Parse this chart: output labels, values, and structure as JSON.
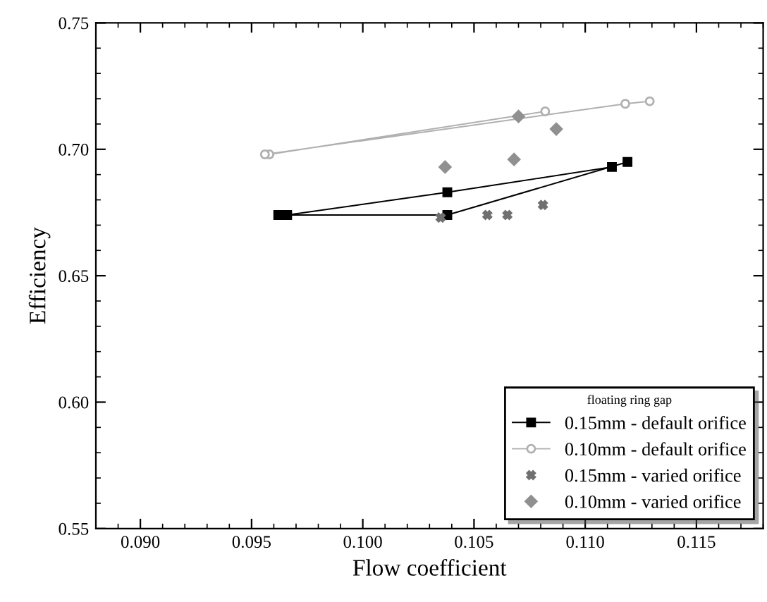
{
  "chart_data": {
    "type": "line",
    "xlabel": "Flow coefficient",
    "ylabel": "Efficiency",
    "legend_title": "floating ring gap",
    "xlim": [
      0.088,
      0.118
    ],
    "xticks": [
      {
        "value": 0.09,
        "label": "0.090"
      },
      {
        "value": 0.095,
        "label": "0.095"
      },
      {
        "value": 0.1,
        "label": "0.100"
      },
      {
        "value": 0.105,
        "label": "0.105"
      },
      {
        "value": 0.11,
        "label": "0.110"
      },
      {
        "value": 0.115,
        "label": "0.115"
      }
    ],
    "ylim": [
      0.55,
      0.75
    ],
    "yticks": [
      0.55,
      {
        "value": 0.6,
        "label": "0.60"
      },
      0.65,
      {
        "value": 0.7,
        "label": "0.70"
      },
      0.75
    ],
    "grid": false,
    "legend": "bottom right",
    "series": [
      {
        "name": "0.15mm - default orifice",
        "marker": "square",
        "color": "#000000",
        "x": [
          0.1112,
          0.1038,
          0.0966,
          0.0962,
          0.1038,
          0.1119
        ],
        "values": [
          0.693,
          0.683,
          0.674,
          0.674,
          0.674,
          0.695
        ]
      },
      {
        "name": "0.10mm - default orifice",
        "marker": "circle",
        "color": "#b0b0b0",
        "x": [
          0.1082,
          0.0958,
          0.0956,
          0.1118,
          0.1129
        ],
        "values": [
          0.715,
          0.698,
          0.698,
          0.718,
          0.719
        ]
      },
      {
        "name": "0.15mm - varied orifice",
        "type": "scatter",
        "marker": "cross",
        "color": "#707070",
        "x": [
          0.1035,
          0.1056,
          0.1065,
          0.1081
        ],
        "values": [
          0.673,
          0.674,
          0.674,
          0.678
        ]
      },
      {
        "name": "0.10mm - varied orifice",
        "type": "scatter",
        "marker": "diamond",
        "color": "#909090",
        "x": [
          0.1037,
          0.1068,
          0.107,
          0.1087
        ],
        "values": [
          0.693,
          0.696,
          0.713,
          0.708
        ]
      }
    ]
  }
}
